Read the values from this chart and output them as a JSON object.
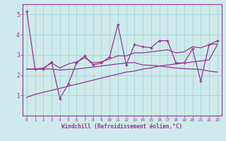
{
  "xlabel": "Windchill (Refroidissement éolien,°C)",
  "bg_color": "#ceeaea",
  "line_color": "#993399",
  "grid_color": "#a8d8d8",
  "x_data": [
    0,
    1,
    2,
    3,
    4,
    5,
    6,
    7,
    8,
    9,
    10,
    11,
    12,
    13,
    14,
    15,
    16,
    17,
    18,
    19,
    20,
    21,
    22,
    23
  ],
  "y_main": [
    5.15,
    2.3,
    2.3,
    2.65,
    0.85,
    1.55,
    2.6,
    2.95,
    2.5,
    2.6,
    2.9,
    4.5,
    2.5,
    3.5,
    3.4,
    3.35,
    3.7,
    3.7,
    2.6,
    2.6,
    3.3,
    1.7,
    3.5,
    3.7
  ],
  "y_smooth_upper": [
    2.3,
    2.3,
    2.35,
    2.6,
    2.35,
    2.55,
    2.65,
    2.85,
    2.6,
    2.65,
    2.8,
    2.95,
    2.95,
    3.1,
    3.1,
    3.15,
    3.2,
    3.25,
    3.1,
    3.15,
    3.4,
    3.35,
    3.5,
    3.55
  ],
  "y_lower_trend": [
    0.9,
    1.05,
    1.15,
    1.25,
    1.35,
    1.45,
    1.55,
    1.65,
    1.75,
    1.85,
    1.95,
    2.05,
    2.15,
    2.2,
    2.3,
    2.35,
    2.45,
    2.5,
    2.55,
    2.6,
    2.65,
    2.7,
    2.75,
    3.5
  ],
  "y_envelope_low": [
    2.3,
    2.3,
    2.3,
    2.3,
    2.25,
    2.28,
    2.3,
    2.35,
    2.4,
    2.45,
    2.5,
    2.55,
    2.6,
    2.62,
    2.5,
    2.48,
    2.45,
    2.4,
    2.35,
    2.32,
    2.3,
    2.28,
    2.2,
    2.15
  ],
  "ylim": [
    0,
    5.5
  ],
  "xlim": [
    -0.5,
    23.5
  ]
}
